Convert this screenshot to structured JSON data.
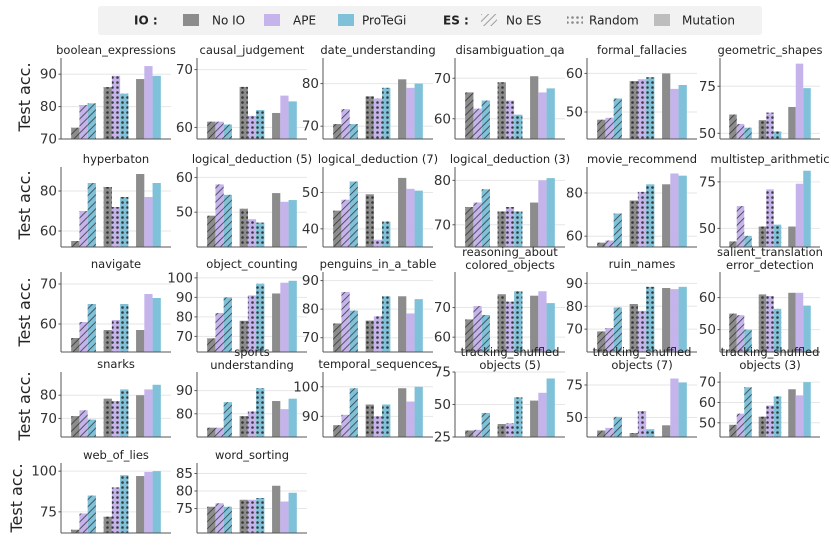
{
  "legend": {
    "io_title": "IO :",
    "es_title": "ES :",
    "io_items": [
      {
        "name": "No IO",
        "color": "#8c8c8c"
      },
      {
        "name": "APE",
        "color": "#c5b4ec"
      },
      {
        "name": "ProTeGi",
        "color": "#7ec1d8"
      }
    ],
    "es_items": [
      {
        "name": "No ES",
        "pattern": "hatch"
      },
      {
        "name": "Random",
        "pattern": "dots"
      },
      {
        "name": "Mutation",
        "pattern": "solid"
      }
    ]
  },
  "ylabel": "Test acc.",
  "chart_data": {
    "type": "bar",
    "groups": [
      "No ES",
      "Random",
      "Mutation"
    ],
    "series": [
      "No IO",
      "APE",
      "ProTeGi"
    ],
    "colors": {
      "No IO": "#8c8c8c",
      "APE": "#c5b4ec",
      "ProTeGi": "#7ec1d8"
    },
    "panels": [
      {
        "title": "boolean_expressions",
        "ylim": [
          70,
          95
        ],
        "yticks": [
          70,
          80,
          90
        ],
        "values": [
          [
            73.5,
            80.5,
            81
          ],
          [
            86,
            89.5,
            84
          ],
          [
            88.5,
            92.5,
            89.5
          ]
        ]
      },
      {
        "title": "causal_judgement",
        "ylim": [
          58,
          72
        ],
        "yticks": [
          60,
          70
        ],
        "values": [
          [
            61,
            61,
            60.5
          ],
          [
            67,
            62,
            63
          ],
          [
            62.5,
            65.5,
            64.5
          ]
        ]
      },
      {
        "title": "date_understanding",
        "ylim": [
          67,
          86
        ],
        "yticks": [
          70,
          80
        ],
        "values": [
          [
            70.5,
            74,
            70.5
          ],
          [
            77,
            76.5,
            79
          ],
          [
            81,
            79,
            80
          ]
        ]
      },
      {
        "title": "disambiguation_qa",
        "ylim": [
          55,
          75
        ],
        "yticks": [
          60,
          70
        ],
        "values": [
          [
            66.5,
            62.5,
            64.5
          ],
          [
            69,
            64.5,
            61
          ],
          [
            70.5,
            66.5,
            67.5
          ]
        ]
      },
      {
        "title": "formal_fallacies",
        "ylim": [
          43,
          64
        ],
        "yticks": [
          50,
          60
        ],
        "values": [
          [
            48,
            48.5,
            53.5
          ],
          [
            58,
            58.5,
            59
          ],
          [
            60,
            56,
            57
          ]
        ]
      },
      {
        "title": "geometric_shapes",
        "ylim": [
          47,
          90
        ],
        "yticks": [
          50,
          75
        ],
        "values": [
          [
            60,
            55,
            53
          ],
          [
            57,
            61,
            51
          ],
          [
            64,
            87,
            74
          ]
        ]
      },
      {
        "title": "hyperbaton",
        "ylim": [
          52,
          92
        ],
        "yticks": [
          60,
          80
        ],
        "values": [
          [
            55,
            70,
            84
          ],
          [
            82,
            72,
            77
          ],
          [
            88.5,
            77,
            84
          ]
        ]
      },
      {
        "title": "logical_deduction (5)",
        "ylim": [
          40,
          63
        ],
        "yticks": [
          50,
          60
        ],
        "values": [
          [
            49,
            58,
            55
          ],
          [
            51,
            48,
            47
          ],
          [
            55.5,
            53,
            53.5
          ]
        ]
      },
      {
        "title": "logical_deduction (7)",
        "ylim": [
          35,
          57
        ],
        "yticks": [
          40,
          50
        ],
        "values": [
          [
            45,
            48,
            53
          ],
          [
            49.5,
            37,
            42
          ],
          [
            54,
            51,
            50.5
          ]
        ]
      },
      {
        "title": "logical_deduction (3)",
        "ylim": [
          65,
          83
        ],
        "yticks": [
          70,
          80
        ],
        "values": [
          [
            74,
            75,
            78
          ],
          [
            73,
            74,
            73
          ],
          [
            75,
            80,
            80.5
          ]
        ]
      },
      {
        "title": "movie_recommend",
        "ylim": [
          55,
          92
        ],
        "yticks": [
          60,
          80
        ],
        "values": [
          [
            57,
            58,
            70.5
          ],
          [
            76.5,
            80.5,
            84
          ],
          [
            84,
            89,
            88
          ]
        ]
      },
      {
        "title": "multistep_arithmetic",
        "ylim": [
          40,
          83
        ],
        "yticks": [
          50,
          75
        ],
        "values": [
          [
            43,
            62,
            46
          ],
          [
            51,
            71,
            52
          ],
          [
            51,
            74,
            81
          ]
        ]
      },
      {
        "title": "navigate",
        "ylim": [
          53,
          73
        ],
        "yticks": [
          60,
          70
        ],
        "values": [
          [
            56.5,
            60.5,
            65
          ],
          [
            58.5,
            61,
            65
          ],
          [
            58.5,
            67.5,
            66.5
          ]
        ]
      },
      {
        "title": "object_counting",
        "ylim": [
          62,
          103
        ],
        "yticks": [
          70,
          80,
          90,
          100
        ],
        "values": [
          [
            69,
            82,
            90
          ],
          [
            78,
            91,
            97
          ],
          [
            92,
            97.5,
            98.5
          ]
        ]
      },
      {
        "title": "penguins_in_a_table",
        "ylim": [
          65,
          93
        ],
        "yticks": [
          70,
          80,
          90
        ],
        "values": [
          [
            75,
            86,
            79.5
          ],
          [
            76,
            77.5,
            84.5
          ],
          [
            84.5,
            78.5,
            83.5
          ]
        ]
      },
      {
        "title": "reasoning_about\ncolored_objects",
        "ylim": [
          55,
          82
        ],
        "yticks": [
          60,
          70
        ],
        "values": [
          [
            66,
            70.5,
            67.5
          ],
          [
            74.5,
            72,
            75.5
          ],
          [
            74,
            75.5,
            71.5
          ]
        ]
      },
      {
        "title": "ruin_names",
        "ylim": [
          60,
          95
        ],
        "yticks": [
          70,
          80,
          90
        ],
        "values": [
          [
            69,
            70.5,
            79.5
          ],
          [
            81,
            78,
            88.5
          ],
          [
            88,
            87.5,
            88.5
          ]
        ]
      },
      {
        "title": "salient_translation\nerror_detection",
        "ylim": [
          43,
          68
        ],
        "yticks": [
          50,
          60
        ],
        "values": [
          [
            55,
            54.5,
            50
          ],
          [
            61,
            60.5,
            56.5
          ],
          [
            61.5,
            61.5,
            57.5
          ]
        ]
      },
      {
        "title": "snarks",
        "ylim": [
          62,
          90
        ],
        "yticks": [
          70,
          80
        ],
        "values": [
          [
            71,
            73.5,
            69.5
          ],
          [
            78.5,
            77.5,
            82.5
          ],
          [
            80,
            82.5,
            84.5
          ]
        ]
      },
      {
        "title": "sports\nunderstanding",
        "ylim": [
          70,
          98
        ],
        "yticks": [
          80,
          90
        ],
        "values": [
          [
            74,
            74,
            85
          ],
          [
            79,
            81,
            91
          ],
          [
            85.5,
            82,
            86.5
          ]
        ]
      },
      {
        "title": "temporal_sequences",
        "ylim": [
          83,
          105
        ],
        "yticks": [
          90,
          100
        ],
        "values": [
          [
            87,
            90.5,
            99.5
          ],
          [
            94,
            90,
            94
          ],
          [
            99.5,
            95,
            100
          ]
        ]
      },
      {
        "title": "tracking_shuffled\nobjects (5)",
        "ylim": [
          25,
          75
        ],
        "yticks": [
          25,
          50,
          75
        ],
        "values": [
          [
            30,
            30.5,
            43.5
          ],
          [
            35,
            35.5,
            55.5
          ],
          [
            53,
            59,
            70
          ]
        ]
      },
      {
        "title": "tracking_shuffled\nobjects (7)",
        "ylim": [
          35,
          85
        ],
        "yticks": [
          50,
          75
        ],
        "values": [
          [
            40,
            42,
            50.5
          ],
          [
            38,
            55,
            41
          ],
          [
            44,
            80,
            77
          ]
        ]
      },
      {
        "title": "tracking_shuffled\nobjects (3)",
        "ylim": [
          43,
          75
        ],
        "yticks": [
          50,
          60,
          70
        ],
        "values": [
          [
            49,
            54.5,
            67.5
          ],
          [
            53,
            58.5,
            63
          ],
          [
            66.5,
            63.5,
            70
          ]
        ]
      },
      {
        "title": "web_of_lies",
        "ylim": [
          62,
          105
        ],
        "yticks": [
          75,
          100
        ],
        "values": [
          [
            64,
            74,
            85
          ],
          [
            72,
            90,
            97.5
          ],
          [
            97,
            99.5,
            100
          ]
        ]
      },
      {
        "title": "word_sorting",
        "ylim": [
          68,
          88
        ],
        "yticks": [
          75,
          80,
          85
        ],
        "values": [
          [
            75.5,
            76.5,
            75.5
          ],
          [
            77.5,
            77.5,
            78
          ],
          [
            81.5,
            77,
            79.5
          ]
        ]
      }
    ]
  }
}
